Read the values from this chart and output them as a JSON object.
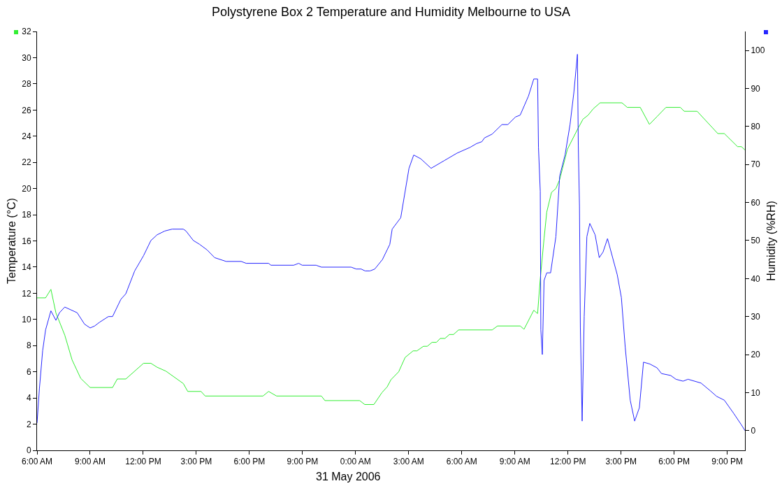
{
  "chart_data": {
    "type": "line",
    "title": "Polystyrene Box 2 Temperature and Humidity Melbourne to USA",
    "ylabel": "Temperature (°C)",
    "y2label": "Humidity (%RH)",
    "annotations": [
      "31 May 2006"
    ],
    "xlim": [
      "2006-05-30T06:00",
      "2006-05-31T22:00"
    ],
    "xticks": [
      {
        "value": "2006-05-30T06:00",
        "label": "6:00 AM"
      },
      {
        "value": "2006-05-30T09:00",
        "label": "9:00 AM"
      },
      {
        "value": "2006-05-30T12:00",
        "label": "12:00 PM"
      },
      {
        "value": "2006-05-30T15:00",
        "label": "3:00 PM"
      },
      {
        "value": "2006-05-30T18:00",
        "label": "6:00 PM"
      },
      {
        "value": "2006-05-30T21:00",
        "label": "9:00 PM"
      },
      {
        "value": "2006-05-31T00:00",
        "label": "0:00 AM"
      },
      {
        "value": "2006-05-31T03:00",
        "label": "3:00 AM"
      },
      {
        "value": "2006-05-31T06:00",
        "label": "6:00 AM"
      },
      {
        "value": "2006-05-31T09:00",
        "label": "9:00 AM"
      },
      {
        "value": "2006-05-31T12:00",
        "label": "12:00 PM"
      },
      {
        "value": "2006-05-31T15:00",
        "label": "3:00 PM"
      },
      {
        "value": "2006-05-31T18:00",
        "label": "6:00 PM"
      },
      {
        "value": "2006-05-31T21:00",
        "label": "9:00 PM"
      }
    ],
    "ylim": [
      0,
      32
    ],
    "yticks": [
      0,
      2,
      4,
      6,
      8,
      10,
      12,
      14,
      16,
      18,
      20,
      22,
      24,
      26,
      28,
      30,
      32
    ],
    "y2lim": [
      -5.2,
      105
    ],
    "y2ticks": [
      0,
      10,
      20,
      30,
      40,
      50,
      60,
      70,
      80,
      90,
      100
    ],
    "grid": false,
    "marker": "none",
    "line_style": "solid",
    "series": [
      {
        "color": "#33ee33",
        "axis": "y",
        "x": [
          "2006-05-30T06:00",
          "2006-05-30T06:29",
          "2006-05-30T06:47",
          "2006-05-30T07:04",
          "2006-05-30T07:34",
          "2006-05-30T07:59",
          "2006-05-30T08:28",
          "2006-05-30T09:00",
          "2006-05-30T10:16",
          "2006-05-30T10:32",
          "2006-05-30T11:01",
          "2006-05-30T12:01",
          "2006-05-30T12:26",
          "2006-05-30T12:47",
          "2006-05-30T13:17",
          "2006-05-30T14:16",
          "2006-05-30T14:31",
          "2006-05-30T15:16",
          "2006-05-30T15:30",
          "2006-05-30T18:46",
          "2006-05-30T19:05",
          "2006-05-30T19:32",
          "2006-05-30T22:04",
          "2006-05-30T22:16",
          "2006-05-31T00:14",
          "2006-05-31T00:31",
          "2006-05-31T01:02",
          "2006-05-31T01:29",
          "2006-05-31T01:47",
          "2006-05-31T02:00",
          "2006-05-31T02:26",
          "2006-05-31T02:48",
          "2006-05-31T03:15",
          "2006-05-31T03:28",
          "2006-05-31T03:50",
          "2006-05-31T04:03",
          "2006-05-31T04:19",
          "2006-05-31T04:34",
          "2006-05-31T04:47",
          "2006-05-31T05:03",
          "2006-05-31T05:18",
          "2006-05-31T05:32",
          "2006-05-31T05:49",
          "2006-05-31T07:43",
          "2006-05-31T08:01",
          "2006-05-31T09:18",
          "2006-05-31T09:31",
          "2006-05-31T10:04",
          "2006-05-31T10:17",
          "2006-05-31T10:26",
          "2006-05-31T10:39",
          "2006-05-31T10:48",
          "2006-05-31T11:04",
          "2006-05-31T11:19",
          "2006-05-31T11:32",
          "2006-05-31T11:58",
          "2006-05-31T12:34",
          "2006-05-31T12:51",
          "2006-05-31T13:08",
          "2006-05-31T13:26",
          "2006-05-31T13:49",
          "2006-05-31T15:03",
          "2006-05-31T15:21",
          "2006-05-31T16:05",
          "2006-05-31T16:36",
          "2006-05-31T17:02",
          "2006-05-31T17:32",
          "2006-05-31T18:21",
          "2006-05-31T18:34",
          "2006-05-31T19:18",
          "2006-05-31T20:28",
          "2006-05-31T20:50",
          "2006-05-31T21:35",
          "2006-05-31T21:48",
          "2006-05-31T22:00"
        ],
        "values": [
          11.65,
          11.65,
          12.3,
          10.5,
          8.8,
          6.9,
          5.5,
          4.8,
          4.8,
          5.45,
          5.45,
          6.65,
          6.65,
          6.35,
          6.05,
          5.1,
          4.5,
          4.5,
          4.15,
          4.15,
          4.5,
          4.15,
          4.15,
          3.8,
          3.8,
          3.5,
          3.5,
          4.4,
          4.85,
          5.4,
          6.0,
          7.1,
          7.6,
          7.6,
          7.95,
          7.95,
          8.25,
          8.25,
          8.55,
          8.55,
          8.85,
          8.85,
          9.2,
          9.2,
          9.5,
          9.5,
          9.25,
          10.7,
          10.45,
          13.1,
          16.2,
          18.2,
          19.7,
          20.0,
          20.7,
          23.0,
          24.6,
          25.3,
          25.6,
          26.1,
          26.55,
          26.55,
          26.2,
          26.2,
          24.9,
          25.5,
          26.2,
          26.2,
          25.9,
          25.9,
          24.2,
          24.2,
          23.2,
          23.2,
          22.95
        ]
      },
      {
        "color": "#2626ff",
        "axis": "y2",
        "x": [
          "2006-05-30T06:00",
          "2006-05-30T06:08",
          "2006-05-30T06:19",
          "2006-05-30T06:29",
          "2006-05-30T06:47",
          "2006-05-30T07:04",
          "2006-05-30T07:16",
          "2006-05-30T07:34",
          "2006-05-30T08:16",
          "2006-05-30T08:41",
          "2006-05-30T09:00",
          "2006-05-30T09:15",
          "2006-05-30T09:32",
          "2006-05-30T10:02",
          "2006-05-30T10:16",
          "2006-05-30T10:44",
          "2006-05-30T11:01",
          "2006-05-30T11:31",
          "2006-05-30T12:01",
          "2006-05-30T12:26",
          "2006-05-30T12:47",
          "2006-05-30T13:13",
          "2006-05-30T13:38",
          "2006-05-30T14:16",
          "2006-05-30T14:25",
          "2006-05-30T14:50",
          "2006-05-30T15:11",
          "2006-05-30T15:37",
          "2006-05-30T16:02",
          "2006-05-30T16:41",
          "2006-05-30T17:32",
          "2006-05-30T17:49",
          "2006-05-30T19:05",
          "2006-05-30T19:13",
          "2006-05-30T20:30",
          "2006-05-30T20:47",
          "2006-05-30T20:59",
          "2006-05-30T21:46",
          "2006-05-30T22:04",
          "2006-05-30T23:45",
          "2006-05-31T00:02",
          "2006-05-31T00:19",
          "2006-05-31T00:32",
          "2006-05-31T00:49",
          "2006-05-31T01:05",
          "2006-05-31T01:31",
          "2006-05-31T01:56",
          "2006-05-31T02:04",
          "2006-05-31T02:33",
          "2006-05-31T03:01",
          "2006-05-31T03:17",
          "2006-05-31T03:41",
          "2006-05-31T04:16",
          "2006-05-31T05:00",
          "2006-05-31T05:44",
          "2006-05-31T06:28",
          "2006-05-31T06:50",
          "2006-05-31T07:08",
          "2006-05-31T07:17",
          "2006-05-31T07:43",
          "2006-05-31T08:16",
          "2006-05-31T08:36",
          "2006-05-31T09:02",
          "2006-05-31T09:18",
          "2006-05-31T09:46",
          "2006-05-31T10:04",
          "2006-05-31T10:17",
          "2006-05-31T10:20",
          "2006-05-31T10:26",
          "2006-05-31T10:28",
          "2006-05-31T10:33",
          "2006-05-31T10:39",
          "2006-05-31T10:48",
          "2006-05-31T11:01",
          "2006-05-31T11:19",
          "2006-05-31T11:32",
          "2006-05-31T11:50",
          "2006-05-31T12:07",
          "2006-05-31T12:20",
          "2006-05-31T12:32",
          "2006-05-31T12:35",
          "2006-05-31T12:39",
          "2006-05-31T12:42",
          "2006-05-31T12:48",
          "2006-05-31T12:55",
          "2006-05-31T13:04",
          "2006-05-31T13:14",
          "2006-05-31T13:32",
          "2006-05-31T13:46",
          "2006-05-31T13:59",
          "2006-05-31T14:14",
          "2006-05-31T14:47",
          "2006-05-31T15:01",
          "2006-05-31T15:14",
          "2006-05-31T15:31",
          "2006-05-31T15:46",
          "2006-05-31T16:02",
          "2006-05-31T16:16",
          "2006-05-31T16:38",
          "2006-05-31T17:02",
          "2006-05-31T17:17",
          "2006-05-31T17:48",
          "2006-05-31T18:06",
          "2006-05-31T18:30",
          "2006-05-31T18:47",
          "2006-05-31T19:31",
          "2006-05-31T20:02",
          "2006-05-31T20:24",
          "2006-05-31T20:50",
          "2006-05-31T21:22",
          "2006-05-31T21:48",
          "2006-05-31T22:00"
        ],
        "values": [
          2,
          11,
          21,
          26.5,
          31.5,
          29,
          31,
          32.5,
          31,
          28,
          27,
          27.5,
          28.5,
          30,
          30,
          34.5,
          36,
          42,
          46,
          50,
          51.5,
          52.5,
          53,
          53,
          52.5,
          50,
          49,
          47.5,
          45.5,
          44.5,
          44.5,
          44,
          44,
          43.5,
          43.5,
          44,
          43.5,
          43.5,
          43,
          43,
          42.5,
          42.5,
          42,
          42,
          42.5,
          45,
          49,
          53,
          56,
          69,
          72.5,
          71.5,
          69,
          71,
          73,
          74.5,
          75.5,
          76,
          77,
          78,
          80.5,
          80.5,
          82.5,
          83,
          88,
          92.5,
          92.5,
          74.5,
          63,
          26.5,
          20,
          39.5,
          41.5,
          41.5,
          51,
          67,
          72.5,
          80.5,
          89,
          99,
          75,
          59,
          27,
          2.5,
          30,
          51,
          54.5,
          51.5,
          45.5,
          47,
          50.5,
          41,
          35,
          22,
          8,
          2.5,
          6,
          18,
          17.5,
          16.5,
          15,
          14.5,
          13.5,
          13,
          13.5,
          12.5,
          10.5,
          9,
          8,
          4.5,
          1.5,
          0
        ]
      }
    ]
  }
}
